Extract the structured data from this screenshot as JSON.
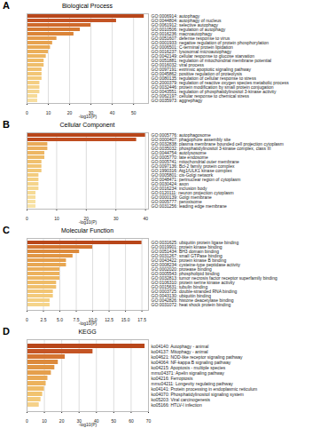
{
  "chart_data": [
    {
      "type": "bar",
      "panel": "A",
      "title": "Biological Process",
      "orientation": "horizontal",
      "x_label": "-log10(P)",
      "grid": true,
      "categories": [
        "GO:0006914: autophagy",
        "GO:0044804: autophagy of nucleus",
        "GO:0061912: selective autophagy",
        "GO:0010506: regulation of autophagy",
        "GO:0016236: macroautophagy",
        "GO:0051607: defense response to virus",
        "GO:0001933: negative regulation of protein phosphorylation",
        "GO:0006501: C-terminal protein lipidation",
        "GO:0016237: lysosomal microautophagy",
        "GO:0042149: cellular response to glucose starvation",
        "GO:0051881: regulation of mitochondrial membrane potential",
        "GO:0016032: viral process",
        "GO:0097191: extrinsic apoptotic signaling pathway",
        "GO:0045862: positive regulation of proteolysis",
        "GO:0080135: regulation of cellular response to stress",
        "GO:2000379: regulation of reactive oxygen species metabolic process",
        "GO:0032446: protein modification by small protein conjugation",
        "GO:0043551: regulation of phosphatidylinositol 3-kinase activity",
        "GO:0062197: cellular response to chemical stress",
        "GO:0035973: aggrephagy"
      ],
      "values": [
        55,
        42,
        30,
        25,
        22,
        14,
        12,
        11,
        10,
        9,
        8,
        8,
        7,
        7,
        7,
        6,
        6,
        6,
        5,
        5
      ],
      "colors": [
        "#b8461a",
        "#c45424",
        "#cf6a2c",
        "#d67a33",
        "#db8438",
        "#e49a4a",
        "#e7a250",
        "#e9a955",
        "#ebaf5b",
        "#edb561",
        "#efbb67",
        "#efbe6b",
        "#f1c271",
        "#f2c676",
        "#f3ca7c",
        "#f4ce83",
        "#f5d28a",
        "#f5d691",
        "#f6da98",
        "#f7dea0"
      ],
      "xlim": [
        0,
        57
      ],
      "xticks": [
        0,
        10,
        20,
        30,
        40,
        50
      ]
    },
    {
      "type": "bar",
      "panel": "B",
      "title": "Cellular Component",
      "orientation": "horizontal",
      "x_label": "-log10(P)",
      "grid": true,
      "categories": [
        "GO:0005776: autophagosome",
        "GO:0000407: phagophore assembly site",
        "GO:0032838: plasma membrane bounded cell projection cytoplasm",
        "GO:0035032: phosphatidylinositol 3-kinase complex, class III",
        "GO:0044754: autolysosome",
        "GO:0005770: late endosome",
        "GO:0005741: mitochondrial outer membrane",
        "GO:0097136: Bcl-2 family protein complex",
        "GO:1990316: Atg1/ULK1 kinase complex",
        "GO:0005801: cis-Golgi network",
        "GO:0048471: perinuclear region of cytoplasm",
        "GO:0030424: axon",
        "GO:0016234: inclusion body",
        "GO:0120111: neuron projection cytoplasm",
        "GO:0000139: Golgi membrane",
        "GO:0005777: peroxisome",
        "GO:0031256: leading edge membrane"
      ],
      "values": [
        40,
        37,
        7,
        7,
        6,
        6,
        5,
        5,
        5,
        4,
        4,
        4,
        4,
        3,
        3,
        3,
        3
      ],
      "colors": [
        "#b8461a",
        "#bf4d1f",
        "#e9ab5a",
        "#ebb05e",
        "#edb664",
        "#eebb69",
        "#f0c06f",
        "#f1c474",
        "#f2c879",
        "#f3cc7f",
        "#f4d084",
        "#f5d48a",
        "#f5d78f",
        "#f6da95",
        "#f7dd9b",
        "#f7e0a1",
        "#f8e3a7"
      ],
      "xlim": [
        0,
        41
      ],
      "xticks": [
        0,
        10,
        20,
        30,
        40
      ]
    },
    {
      "type": "bar",
      "panel": "C",
      "title": "Molecular Function",
      "orientation": "horizontal",
      "x_label": "-log10(P)",
      "grid": true,
      "categories": [
        "GO:0031625: ubiquitin protein ligase binding",
        "GO:0019901: protein kinase binding",
        "GO:0051434: BH3 domain binding",
        "GO:0031267: small GTPase binding",
        "GO:0043422: protein kinase B binding",
        "GO:0008234: cysteine-type peptidase activity",
        "GO:0002020: protease binding",
        "GO:0005543: phospholipid binding",
        "GO:0032813: tumor necrosis factor receptor superfamily binding",
        "GO:0106310: protein serine kinase activity",
        "GO:0015631: tubulin binding",
        "GO:0003725: double-stranded RNA binding",
        "GO:0043130: ubiquitin binding",
        "GO:0042826: histone deacetylase binding",
        "GO:0031072: heat shock protein binding"
      ],
      "values": [
        17.5,
        10,
        8,
        7,
        6,
        6,
        5,
        5,
        5,
        4.5,
        4.5,
        4,
        4,
        3.5,
        3.5
      ],
      "colors": [
        "#b8461a",
        "#d47632",
        "#dc8a3c",
        "#e19644",
        "#e59f4c",
        "#e8a752",
        "#eaad58",
        "#ecb25d",
        "#edb662",
        "#efbc68",
        "#f0c06e",
        "#f2c574",
        "#f3ca7b",
        "#f4cf82",
        "#f5d48a"
      ],
      "xlim": [
        0,
        18.5
      ],
      "xticks": [
        0,
        {
          "value": 2.5,
          "label": "2.5"
        },
        {
          "value": 5,
          "label": "5.0"
        },
        {
          "value": 7.5,
          "label": "7.5"
        },
        {
          "value": 10,
          "label": "10.0"
        },
        {
          "value": 12.5,
          "label": "12.5"
        },
        {
          "value": 15,
          "label": "15.0"
        },
        {
          "value": 17.5,
          "label": "17.5"
        }
      ]
    },
    {
      "type": "bar",
      "panel": "D",
      "title": "KEGG",
      "orientation": "horizontal",
      "x_label": "-log10(P)",
      "grid": true,
      "categories": [
        "ko04140: Autophagy - animal",
        "ko04137: Mitophagy - animal",
        "ko04621: NOD-like receptor signaling pathway",
        "ko04064: NF-kappa B signaling pathway",
        "ko04215: Apoptosis - multiple species",
        "mmu04371: Apelin signaling pathway",
        "ko04216: Ferroptosis",
        "mmu04211: Longevity regulating pathway",
        "ko04141: Protein processing in endoplasmic reticulum",
        "ko04070: Phosphatidylinositol signaling system",
        "ko05203: Viral carcinogenesis",
        "ko05166: HTLV-I infection"
      ],
      "values": [
        68,
        38,
        22,
        18,
        16,
        14,
        12,
        11,
        10,
        9,
        8,
        7
      ],
      "colors": [
        "#b8461a",
        "#c45424",
        "#d57531",
        "#dc8a3c",
        "#e19644",
        "#e59f4c",
        "#e9a955",
        "#ecb25d",
        "#efbb67",
        "#f1c36f",
        "#f3ca7b",
        "#f5d189"
      ],
      "xlim": [
        0,
        70
      ],
      "xticks": [
        0,
        10,
        20,
        30,
        40,
        50,
        60,
        70
      ]
    }
  ]
}
